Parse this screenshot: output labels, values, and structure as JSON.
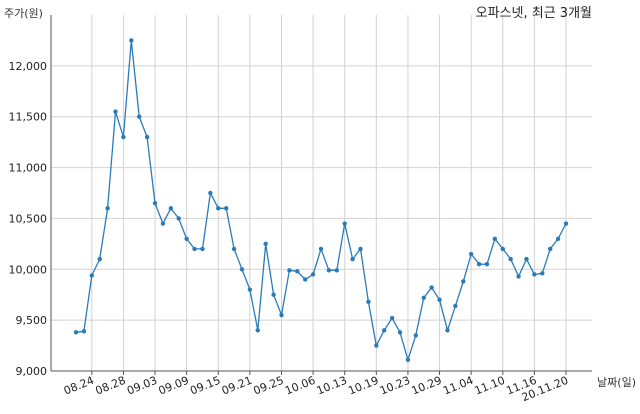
{
  "chart_data": {
    "type": "line",
    "title": "오파스넷, 최근 3개월",
    "ylabel": "주가(원)",
    "xlabel": "날짜(일)",
    "ylim": [
      9000,
      12500
    ],
    "y_ticks": [
      9000,
      9500,
      10000,
      10500,
      11000,
      11500,
      12000
    ],
    "y_tick_labels": [
      "9,000",
      "9,500",
      "10,000",
      "10,500",
      "11,000",
      "11,500",
      "12,000"
    ],
    "x_tick_labels": [
      "08.24",
      "08.28",
      "09.03",
      "09.09",
      "09.15",
      "09.21",
      "09.25",
      "10.06",
      "10.13",
      "10.19",
      "10.23",
      "10.29",
      "11.04",
      "11.10",
      "11.16",
      "20.11.20"
    ],
    "x_tick_index": [
      2,
      6,
      10,
      14,
      18,
      22,
      26,
      30,
      34,
      38,
      42,
      46,
      50,
      54,
      58,
      62
    ],
    "grid": true,
    "color": "#2b7bb9",
    "series": [
      {
        "values": [
          9380,
          9390,
          9940,
          10100,
          10600,
          11550,
          11300,
          12250,
          11500,
          11300,
          10650,
          10450,
          10600,
          10500,
          10300,
          10200,
          10200,
          10750,
          10600,
          10600,
          10200,
          10000,
          9800,
          9400,
          10250,
          9750,
          9550,
          9990,
          9980,
          9900,
          9950,
          10200,
          9990,
          9990,
          10450,
          10100,
          10200,
          9680,
          9250,
          9400,
          9520,
          9380,
          9110,
          9350,
          9720,
          9820,
          9700,
          9400,
          9640,
          9880,
          10150,
          10050,
          10050,
          10300,
          10200,
          10100,
          9930,
          10100,
          9950,
          9960,
          10200,
          10300,
          10450
        ]
      }
    ]
  }
}
